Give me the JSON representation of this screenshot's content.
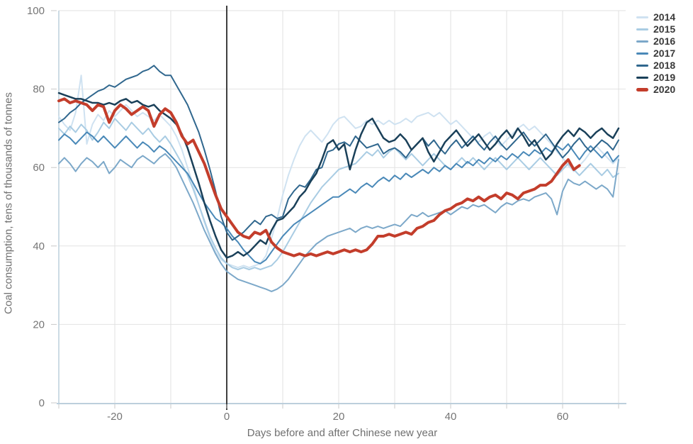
{
  "axis_titles": {
    "y": "Coal consumption, tens of thousands of tonnes",
    "x": "Days before and after Chinese new year"
  },
  "chart_data": {
    "type": "line",
    "title": "",
    "xlabel": "Days before and after Chinese new year",
    "ylabel": "Coal consumption, tens of thousands of tonnes",
    "x_axis": {
      "min": -30,
      "max": 71,
      "gridline_step": 10,
      "tick_step": 10,
      "labeled_ticks": [
        -20,
        0,
        20,
        40,
        60
      ],
      "zero_line_day": 0
    },
    "y_axis": {
      "min": 0,
      "max": 100,
      "gridline_step": 20,
      "labeled_ticks": [
        0,
        20,
        40,
        60,
        80,
        100
      ]
    },
    "legend_position": "top-right",
    "grid": true,
    "colors": {
      "grid": "#e2e2e2",
      "axis_line": "#bccfdc",
      "zero_line": "#3f3f3f",
      "tick_mark": "#c8c8c8",
      "tick_text": "#757575",
      "axis_title_text": "#707070",
      "legend_text": "#3a3a3a"
    },
    "series": [
      {
        "name": "2014",
        "color": "#cfe2f1",
        "line_width": 2,
        "start_day": -30,
        "values": [
          73,
          71,
          69.5,
          74,
          83.5,
          66,
          71,
          73.5,
          72,
          74.5,
          73,
          74.5,
          76,
          74.5,
          73,
          74,
          73,
          72,
          73.5,
          72,
          70.5,
          68,
          64.5,
          60,
          55.5,
          50.5,
          46,
          42,
          38.5,
          36.5,
          35.5,
          35,
          34.5,
          35,
          34.5,
          35,
          35.5,
          37.5,
          42,
          47,
          53,
          58,
          62,
          65.5,
          68,
          69.5,
          68,
          66.5,
          68.5,
          71,
          72.5,
          73,
          71.5,
          70,
          70.5,
          72,
          71,
          72,
          71,
          72,
          71,
          71.5,
          72.5,
          71.5,
          73,
          73.5,
          74,
          73,
          74,
          72.5,
          71,
          72,
          70.5,
          69,
          67.5,
          66.5,
          68,
          69,
          67,
          65.5,
          67,
          68.5,
          70,
          71,
          69.5,
          70.5,
          69,
          67.5,
          66,
          64,
          62.5,
          60.5,
          59,
          60.5,
          62,
          64,
          65.5,
          64,
          62.5,
          61,
          62.5
        ]
      },
      {
        "name": "2015",
        "color": "#a9cce3",
        "line_width": 2,
        "start_day": -30,
        "values": [
          70,
          68.5,
          70.5,
          69,
          71,
          69.5,
          67,
          69,
          71.5,
          70,
          72.5,
          71,
          69.5,
          71.5,
          70,
          68.5,
          70,
          68,
          66.5,
          68,
          66,
          63.5,
          61,
          58,
          54.5,
          50.5,
          46.5,
          42.5,
          39.5,
          37,
          35.5,
          34.5,
          34,
          34.5,
          34,
          34.5,
          34,
          34.5,
          35,
          36.5,
          38.5,
          41,
          43.5,
          46,
          48.5,
          51,
          53,
          55,
          56.5,
          58,
          59.5,
          60,
          60.5,
          61,
          62.5,
          64,
          63,
          64.5,
          62.5,
          64,
          65,
          63.5,
          62,
          63.5,
          62,
          60.5,
          62,
          63.5,
          62,
          60.5,
          59.5,
          61,
          62.5,
          61,
          62.5,
          61,
          59.5,
          61,
          62.5,
          61,
          59.5,
          61,
          62.5,
          61,
          59.5,
          61,
          62.5,
          61,
          59.5,
          58,
          59.5,
          61,
          59.5,
          58,
          59.5,
          61,
          59.5,
          58,
          59.5,
          57.5,
          58.5
        ]
      },
      {
        "name": "2016",
        "color": "#7ca8c9",
        "line_width": 2,
        "start_day": -30,
        "values": [
          61,
          62.5,
          61,
          59,
          61,
          62.5,
          61.5,
          60,
          61.5,
          58.5,
          60,
          62,
          61,
          60,
          62,
          63,
          62,
          61,
          62.5,
          63.5,
          62,
          60,
          57,
          54,
          51,
          47.5,
          44,
          41,
          38,
          35.5,
          33.5,
          32.5,
          31.5,
          31,
          30.5,
          30,
          29.5,
          29,
          28.4,
          29,
          30,
          31.5,
          33.5,
          35.5,
          37.5,
          39,
          40.5,
          41.5,
          42.5,
          43,
          43.5,
          44,
          44.5,
          43.5,
          44.5,
          45,
          44.5,
          45,
          44.5,
          45,
          45.5,
          45,
          46.5,
          48,
          47.5,
          48.5,
          47.5,
          48,
          48.5,
          49,
          48,
          49,
          50,
          49.5,
          50.5,
          50,
          50.5,
          49.5,
          48.5,
          50,
          51,
          50.5,
          51.5,
          52,
          51.5,
          52.5,
          53,
          53.5,
          52,
          48,
          54,
          57,
          56,
          55.5,
          56.5,
          55.5,
          54.5,
          55.5,
          54.5,
          52.5,
          62
        ]
      },
      {
        "name": "2017",
        "color": "#4a89b8",
        "line_width": 2,
        "start_day": -30,
        "values": [
          67,
          68.5,
          67.5,
          66,
          67.5,
          69,
          68,
          66.5,
          68,
          66.5,
          65,
          66.5,
          68,
          66.5,
          65,
          66.5,
          65.5,
          64,
          65.5,
          64.5,
          63,
          61.5,
          60,
          58.5,
          56,
          53.5,
          51,
          49,
          47,
          46,
          44.5,
          42.5,
          41,
          39,
          37.5,
          36,
          35.5,
          36.5,
          38.5,
          40.5,
          42.5,
          44,
          45.5,
          46.5,
          47.5,
          48.5,
          49.5,
          50.5,
          51.5,
          52.5,
          52.5,
          53.5,
          54.5,
          53.5,
          55,
          56,
          55,
          56.5,
          57.5,
          56.5,
          58,
          57,
          58.5,
          57.5,
          58.5,
          59.5,
          58.5,
          60,
          59,
          60.5,
          59.5,
          61,
          60,
          61.5,
          60.5,
          62,
          61,
          62.5,
          61.5,
          63,
          62,
          63.5,
          62.5,
          64,
          63,
          64.5,
          63.5,
          65,
          64,
          65.5,
          64.5,
          66,
          64,
          62,
          64,
          65.5,
          64,
          62.5,
          64,
          61.5,
          63
        ]
      },
      {
        "name": "2018",
        "color": "#30678e",
        "line_width": 2,
        "start_day": -30,
        "values": [
          71.5,
          72.5,
          74,
          75,
          76.5,
          77.5,
          78.5,
          79.5,
          80,
          81,
          80.5,
          81.5,
          82.5,
          83,
          83.5,
          84.5,
          85,
          86,
          84.5,
          83.5,
          83.5,
          81,
          78.5,
          76,
          72.5,
          69,
          64.5,
          59.5,
          54,
          47.5,
          43.5,
          41.5,
          42.5,
          43.5,
          45,
          46.5,
          45.5,
          47.5,
          48,
          47,
          47.5,
          52,
          54,
          55.5,
          55,
          57,
          59.5,
          60,
          64,
          64.5,
          66,
          66.5,
          65.5,
          68,
          66.5,
          65,
          65.5,
          66,
          63.5,
          64.5,
          65,
          64,
          62.5,
          64.5,
          66,
          67.5,
          65.5,
          67,
          65,
          63.5,
          65.5,
          67,
          65,
          66.5,
          68,
          66,
          64.5,
          66.5,
          68,
          66,
          64.5,
          66,
          67.5,
          69,
          67,
          65.5,
          67,
          68.5,
          66.5,
          64.5,
          62.5,
          64,
          66,
          67.5,
          65.5,
          64,
          65.5,
          67,
          66,
          64.5,
          67
        ]
      },
      {
        "name": "2019",
        "color": "#1a4059",
        "line_width": 2.5,
        "start_day": -30,
        "values": [
          79,
          78.5,
          78,
          77.5,
          77.5,
          77,
          76.5,
          76.5,
          76,
          76.5,
          76,
          77,
          77.5,
          76.5,
          77,
          76,
          75.5,
          76,
          74.5,
          73.5,
          72.5,
          71,
          68.5,
          65,
          60.5,
          56,
          51,
          46.5,
          42.5,
          39,
          37,
          37.5,
          38.5,
          37.5,
          38.5,
          40,
          41.5,
          40.5,
          44,
          46.5,
          47,
          48.5,
          50,
          52.5,
          54,
          56.5,
          58.5,
          62,
          66,
          67,
          64.5,
          66,
          59.5,
          64.5,
          68.5,
          71.5,
          72.5,
          70,
          67.5,
          66.5,
          67,
          68.5,
          67,
          64.5,
          66,
          67.5,
          64,
          61.5,
          64,
          66.5,
          68,
          69.5,
          67.5,
          65.5,
          67,
          68.5,
          66.5,
          64.5,
          66,
          68,
          69.5,
          67.5,
          70,
          68,
          65.5,
          67,
          64.5,
          62,
          63.5,
          66,
          68,
          69.5,
          68,
          70,
          69,
          67.5,
          69,
          70,
          68.5,
          67.5,
          70
        ]
      },
      {
        "name": "2020",
        "color": "#c33d2b",
        "line_width": 4,
        "start_day": -30,
        "values": [
          77,
          77.5,
          76.5,
          77,
          76.5,
          76,
          74.5,
          76,
          75.5,
          71.5,
          74.5,
          76,
          75,
          73.5,
          74.5,
          75.5,
          74.5,
          70.5,
          73.5,
          75,
          74,
          71.5,
          68,
          66,
          67,
          64,
          61,
          57,
          53,
          49.5,
          47.5,
          45.5,
          43.5,
          42.5,
          42,
          43.5,
          43,
          44,
          41,
          39.5,
          38.5,
          38,
          37.5,
          38,
          37.5,
          38,
          37.5,
          38,
          38.5,
          38,
          38.5,
          39,
          38.5,
          39,
          38.5,
          39,
          40.5,
          42.5,
          42.5,
          43,
          42.5,
          43,
          43.5,
          43,
          44.5,
          45,
          46,
          46.5,
          48,
          49,
          49.5,
          50.5,
          51,
          52,
          51.5,
          52.5,
          51.5,
          52.5,
          53,
          52,
          53.5,
          53,
          52,
          53.5,
          54,
          54.5,
          55.5,
          55.5,
          56.5,
          58.5,
          60.5,
          62,
          59.5,
          60.5
        ]
      }
    ]
  }
}
